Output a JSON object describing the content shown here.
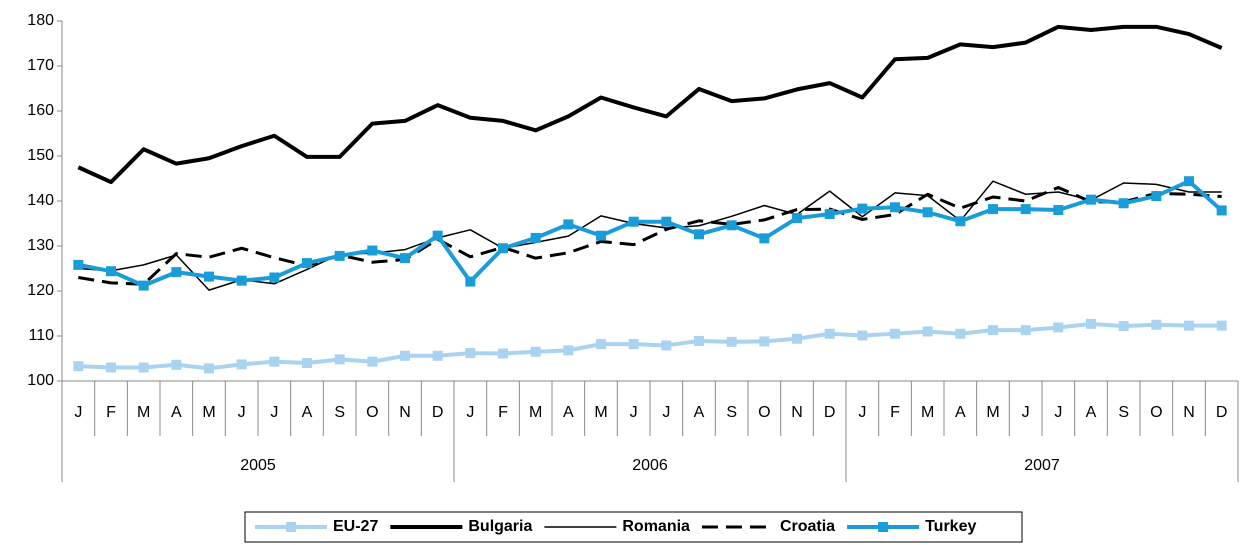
{
  "chart_data": {
    "type": "line",
    "categories": [
      "J",
      "F",
      "M",
      "A",
      "M",
      "J",
      "J",
      "A",
      "S",
      "O",
      "N",
      "D",
      "J",
      "F",
      "M",
      "A",
      "M",
      "J",
      "J",
      "A",
      "S",
      "O",
      "N",
      "D",
      "J",
      "F",
      "M",
      "A",
      "M",
      "J",
      "J",
      "A",
      "S",
      "O",
      "N",
      "D"
    ],
    "year_groups": [
      "2005",
      "2006",
      "2007"
    ],
    "ylim": [
      100,
      180
    ],
    "yticks": [
      100,
      110,
      120,
      130,
      140,
      150,
      160,
      170,
      180
    ],
    "grid": false,
    "legend": "bottom",
    "series": [
      {
        "name": "EU-27",
        "color": "#a9d3ee",
        "style": "thick",
        "marker": "square",
        "values": [
          103.3,
          103,
          103,
          103.6,
          102.8,
          103.7,
          104.3,
          104,
          104.8,
          104.3,
          105.6,
          105.6,
          106.2,
          106.1,
          106.5,
          106.8,
          108.2,
          108.2,
          107.9,
          108.9,
          108.7,
          108.8,
          109.4,
          110.5,
          110.1,
          110.5,
          111,
          110.5,
          111.3,
          111.3,
          111.9,
          112.7,
          112.2,
          112.5,
          112.3,
          112.3
        ]
      },
      {
        "name": "Bulgaria",
        "color": "#000000",
        "style": "thick",
        "marker": "none",
        "values": [
          147.5,
          144.2,
          151.5,
          148.3,
          149.5,
          152.2,
          154.5,
          149.8,
          149.8,
          157.2,
          157.8,
          161.3,
          158.5,
          157.8,
          155.7,
          158.8,
          163,
          160.8,
          158.8,
          164.9,
          162.2,
          162.8,
          164.8,
          166.2,
          163,
          171.5,
          171.8,
          174.8,
          174.2,
          175.2,
          178.7,
          178,
          178.7,
          178.7,
          177.1,
          174
        ]
      },
      {
        "name": "Romania",
        "color": "#000000",
        "style": "thin",
        "marker": "none",
        "values": [
          125,
          124.5,
          125.8,
          128,
          120.2,
          122.5,
          121.6,
          124.8,
          128.2,
          128.4,
          129.2,
          131.8,
          133.6,
          129.5,
          130.8,
          132.2,
          136.7,
          135,
          134,
          134.5,
          136.6,
          139,
          137,
          142.2,
          136.5,
          141.8,
          141.2,
          135.6,
          144.4,
          141.5,
          142,
          140.2,
          144,
          143.7,
          142,
          142
        ]
      },
      {
        "name": "Croatia",
        "color": "#000000",
        "style": "dashed",
        "marker": "none",
        "values": [
          123,
          121.8,
          121.5,
          128.3,
          127.5,
          129.5,
          127.4,
          125.6,
          128,
          126.4,
          127,
          131.5,
          127.6,
          129.7,
          127.3,
          128.5,
          131,
          130.3,
          133.7,
          135.6,
          134.8,
          135.8,
          138.1,
          138.2,
          135.9,
          137,
          141.5,
          138.4,
          140.9,
          140,
          143,
          139.8,
          139.8,
          141.7,
          141.5,
          141
        ]
      },
      {
        "name": "Turkey",
        "color": "#1a9cd8",
        "style": "thick",
        "marker": "square",
        "values": [
          125.8,
          124.4,
          121.2,
          124.2,
          123.2,
          122.3,
          123,
          126.2,
          127.8,
          129,
          127.3,
          132.3,
          122.1,
          129.5,
          131.8,
          134.8,
          132.3,
          135.4,
          135.4,
          132.6,
          134.6,
          131.7,
          136.2,
          137.1,
          138.3,
          138.6,
          137.5,
          135.5,
          138.2,
          138.2,
          138,
          140.3,
          139.5,
          141.1,
          144.4,
          137.9
        ]
      }
    ]
  }
}
